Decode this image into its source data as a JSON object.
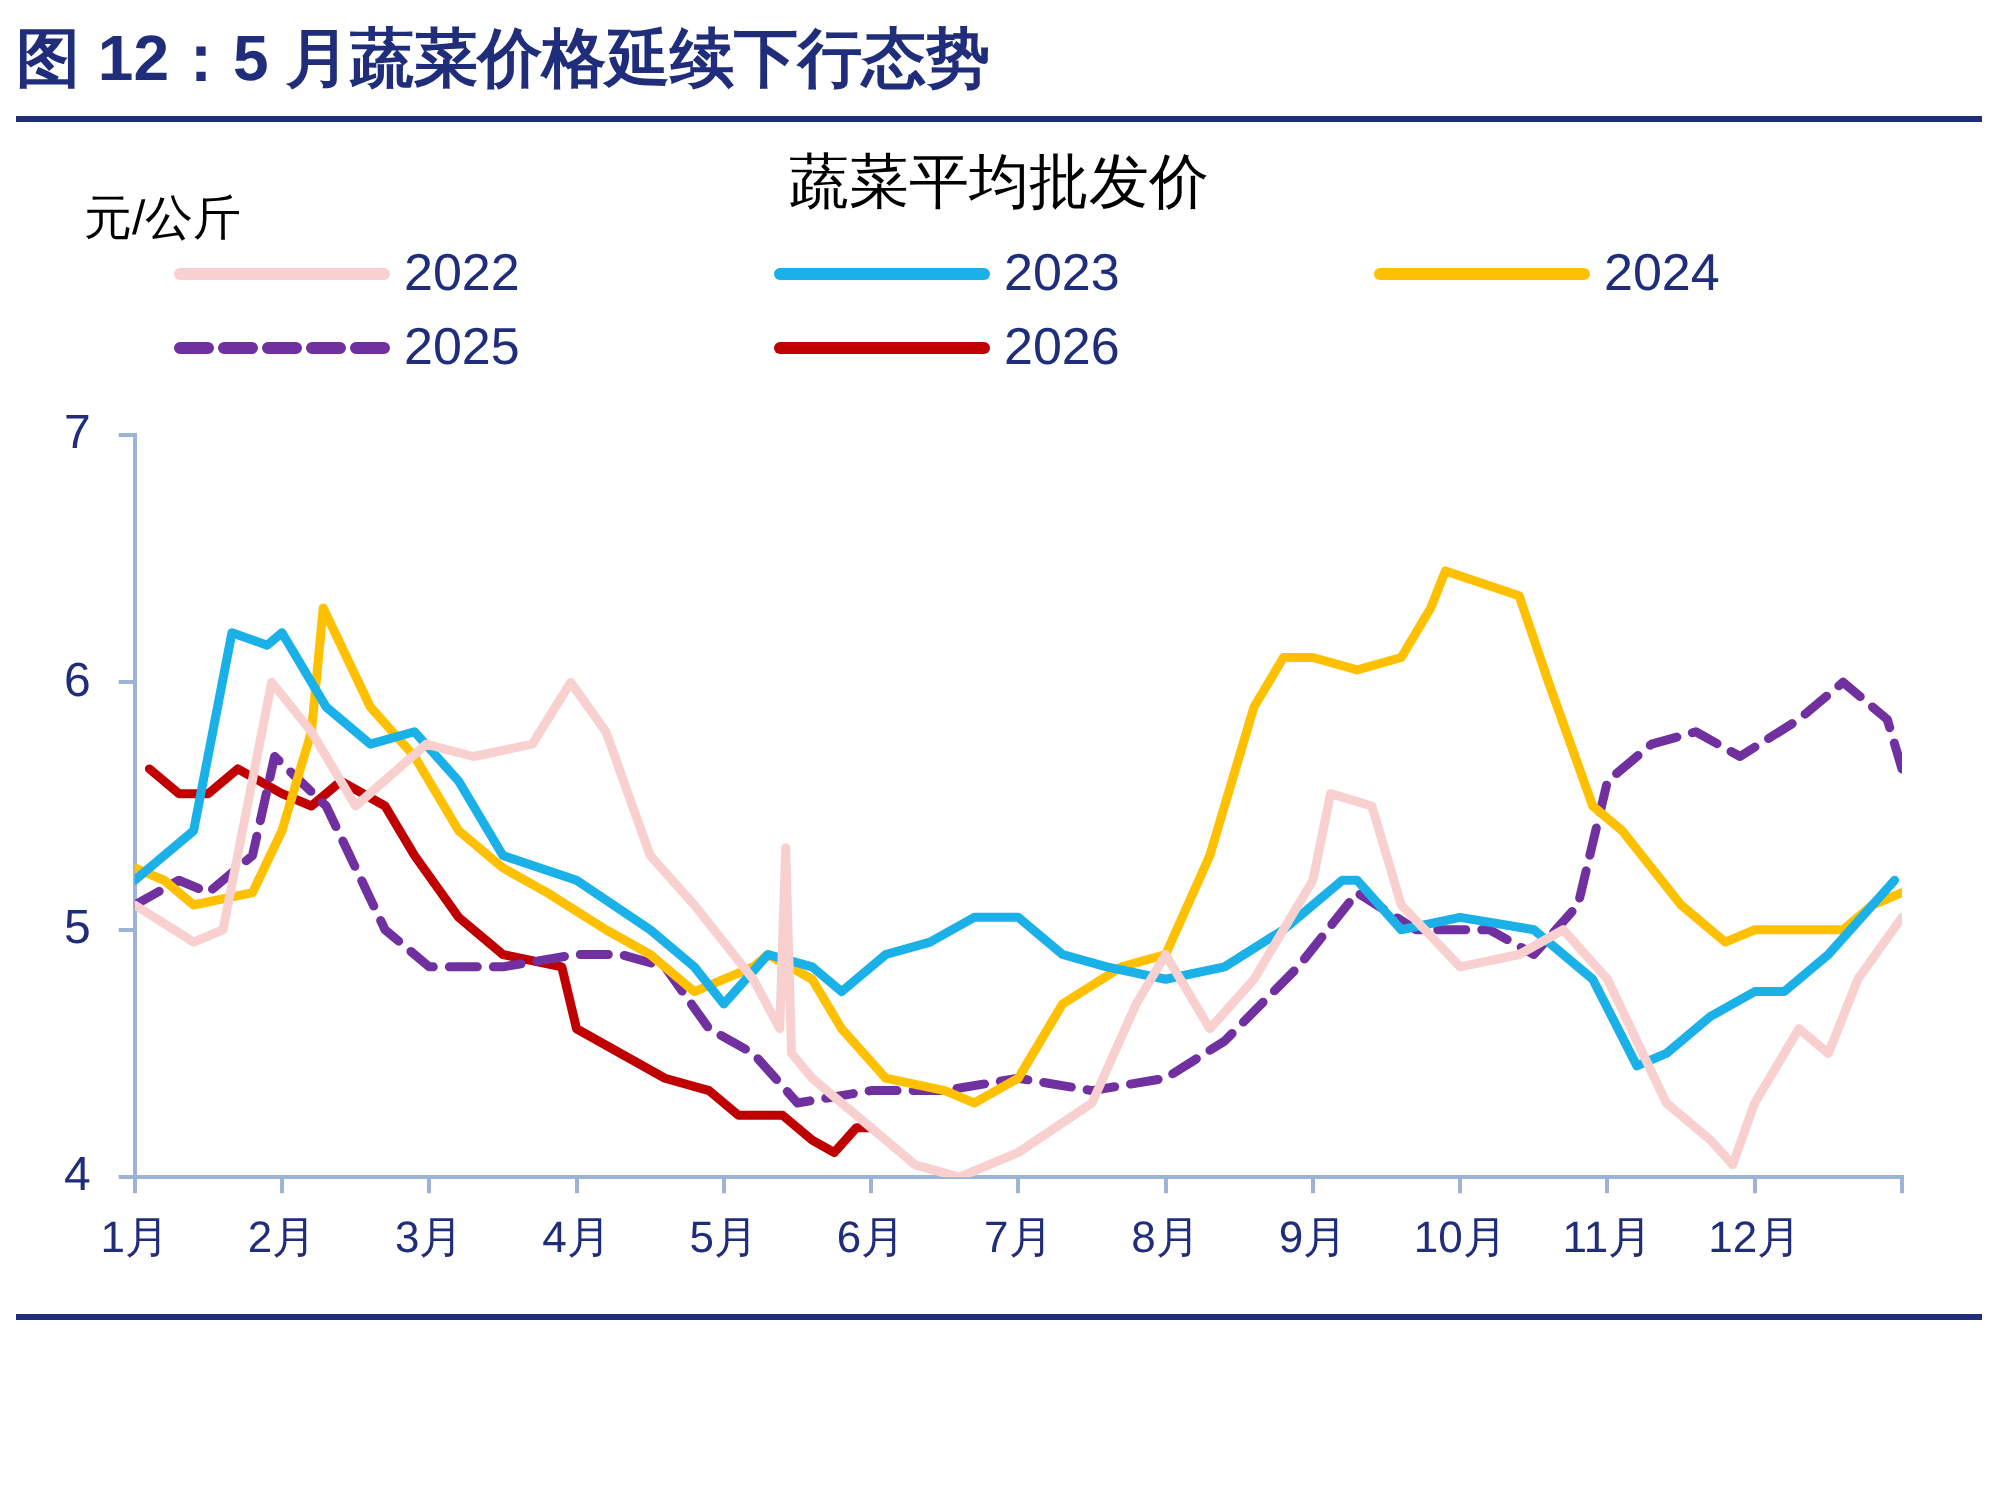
{
  "chart_data": {
    "type": "line",
    "title": "蔬菜平均批发价",
    "subtitle": "图 12：5 月蔬菜价格延续下行态势",
    "ylabel": "元/公斤",
    "xlim": [
      1,
      13
    ],
    "xticks": [
      {
        "value": 1,
        "label": "1月"
      },
      {
        "value": 2,
        "label": "2月"
      },
      {
        "value": 3,
        "label": "3月"
      },
      {
        "value": 4,
        "label": "4月"
      },
      {
        "value": 5,
        "label": "5月"
      },
      {
        "value": 6,
        "label": "6月"
      },
      {
        "value": 7,
        "label": "7月"
      },
      {
        "value": 8,
        "label": "8月"
      },
      {
        "value": 9,
        "label": "9月"
      },
      {
        "value": 10,
        "label": "10月"
      },
      {
        "value": 11,
        "label": "11月"
      },
      {
        "value": 12,
        "label": "12月"
      },
      {
        "value": 13,
        "label": null
      }
    ],
    "ylim": [
      4,
      7
    ],
    "yticks": [
      4,
      5,
      6,
      7
    ],
    "grid": false,
    "legend": "top",
    "marker": "none",
    "series": [
      {
        "name": "2022",
        "color": "#f8d0d0",
        "x": [
          1,
          1.4,
          1.6,
          1.93,
          2.2,
          2.5,
          2.98,
          3.3,
          3.7,
          3.96,
          4.2,
          4.5,
          4.8,
          5.2,
          5.38,
          5.42,
          5.46,
          5.6,
          6.0,
          6.3,
          6.6,
          7.0,
          7.5,
          7.8,
          8.0,
          8.3,
          8.6,
          9.0,
          9.12,
          9.4,
          9.6,
          10.0,
          10.4,
          10.7,
          11.0,
          11.4,
          11.7,
          11.85,
          12.0,
          12.3,
          12.5,
          12.7,
          13
        ],
        "values": [
          5.1,
          4.95,
          5.0,
          6.0,
          5.8,
          5.5,
          5.75,
          5.7,
          5.75,
          6.0,
          5.8,
          5.3,
          5.1,
          4.8,
          4.6,
          5.33,
          4.5,
          4.4,
          4.2,
          4.05,
          4.0,
          4.1,
          4.3,
          4.7,
          4.9,
          4.6,
          4.8,
          5.2,
          5.55,
          5.5,
          5.1,
          4.85,
          4.9,
          5.0,
          4.8,
          4.3,
          4.15,
          4.05,
          4.3,
          4.6,
          4.5,
          4.8,
          5.05
        ]
      },
      {
        "name": "2023",
        "color": "#1ab0e8",
        "x": [
          1,
          1.2,
          1.4,
          1.66,
          1.9,
          2.0,
          2.3,
          2.6,
          2.9,
          3.2,
          3.5,
          4.0,
          4.5,
          4.8,
          5.0,
          5.3,
          5.6,
          5.8,
          6.1,
          6.4,
          6.7,
          7.0,
          7.3,
          7.6,
          8.0,
          8.4,
          8.8,
          9.2,
          9.3,
          9.6,
          10.0,
          10.5,
          10.9,
          11.2,
          11.4,
          11.7,
          12.0,
          12.2,
          12.5,
          12.8,
          12.95
        ],
        "values": [
          5.2,
          5.3,
          5.4,
          6.2,
          6.15,
          6.2,
          5.9,
          5.75,
          5.8,
          5.6,
          5.3,
          5.2,
          5.0,
          4.85,
          4.7,
          4.9,
          4.85,
          4.75,
          4.9,
          4.95,
          5.05,
          5.05,
          4.9,
          4.85,
          4.8,
          4.85,
          5.0,
          5.2,
          5.2,
          5.0,
          5.05,
          5.0,
          4.8,
          4.45,
          4.5,
          4.65,
          4.75,
          4.75,
          4.9,
          5.1,
          5.2
        ]
      },
      {
        "name": "2024",
        "color": "#ffc000",
        "x": [
          1,
          1.2,
          1.4,
          1.8,
          2.0,
          2.2,
          2.28,
          2.6,
          2.9,
          3.2,
          3.5,
          3.8,
          4.2,
          4.5,
          4.8,
          5.2,
          5.3,
          5.6,
          5.8,
          6.1,
          6.5,
          6.7,
          7.0,
          7.3,
          7.7,
          8.0,
          8.3,
          8.6,
          8.8,
          9.0,
          9.3,
          9.6,
          9.8,
          9.9,
          10.4,
          10.6,
          10.9,
          11.1,
          11.5,
          11.8,
          12.0,
          12.3,
          12.6,
          12.8,
          13
        ],
        "values": [
          5.25,
          5.2,
          5.1,
          5.15,
          5.4,
          5.8,
          6.3,
          5.9,
          5.7,
          5.4,
          5.25,
          5.15,
          5.0,
          4.9,
          4.75,
          4.85,
          4.9,
          4.8,
          4.6,
          4.4,
          4.35,
          4.3,
          4.4,
          4.7,
          4.85,
          4.9,
          5.3,
          5.9,
          6.1,
          6.1,
          6.05,
          6.1,
          6.3,
          6.45,
          6.35,
          6.0,
          5.5,
          5.4,
          5.1,
          4.95,
          5.0,
          5.0,
          5.0,
          5.1,
          5.15
        ]
      },
      {
        "name": "2025",
        "color": "#7030a0",
        "line_style": "dashed",
        "x": [
          1,
          1.3,
          1.5,
          1.8,
          1.95,
          2.3,
          2.7,
          3.0,
          3.5,
          4.0,
          4.3,
          4.6,
          4.9,
          5.2,
          5.5,
          6.0,
          6.5,
          7.0,
          7.5,
          8.0,
          8.4,
          8.9,
          9.3,
          9.7,
          10.2,
          10.5,
          10.8,
          11.0,
          11.3,
          11.6,
          11.9,
          12.3,
          12.6,
          12.9,
          13
        ],
        "values": [
          5.1,
          5.2,
          5.15,
          5.3,
          5.7,
          5.5,
          5.0,
          4.85,
          4.85,
          4.9,
          4.9,
          4.85,
          4.6,
          4.5,
          4.3,
          4.35,
          4.35,
          4.4,
          4.35,
          4.4,
          4.55,
          4.85,
          5.15,
          5.0,
          5.0,
          4.9,
          5.1,
          5.6,
          5.75,
          5.8,
          5.7,
          5.85,
          6.0,
          5.85,
          5.65
        ]
      },
      {
        "name": "2026",
        "color": "#c00000",
        "x": [
          1.1,
          1.3,
          1.5,
          1.7,
          2.0,
          2.2,
          2.4,
          2.7,
          2.9,
          3.2,
          3.5,
          3.9,
          4.0,
          4.3,
          4.6,
          4.9,
          5.1,
          5.4,
          5.6,
          5.75,
          5.9,
          6.0
        ],
        "values": [
          5.65,
          5.55,
          5.55,
          5.65,
          5.55,
          5.5,
          5.6,
          5.5,
          5.3,
          5.05,
          4.9,
          4.85,
          4.6,
          4.5,
          4.4,
          4.35,
          4.25,
          4.25,
          4.15,
          4.1,
          4.2,
          4.2
        ]
      }
    ]
  }
}
